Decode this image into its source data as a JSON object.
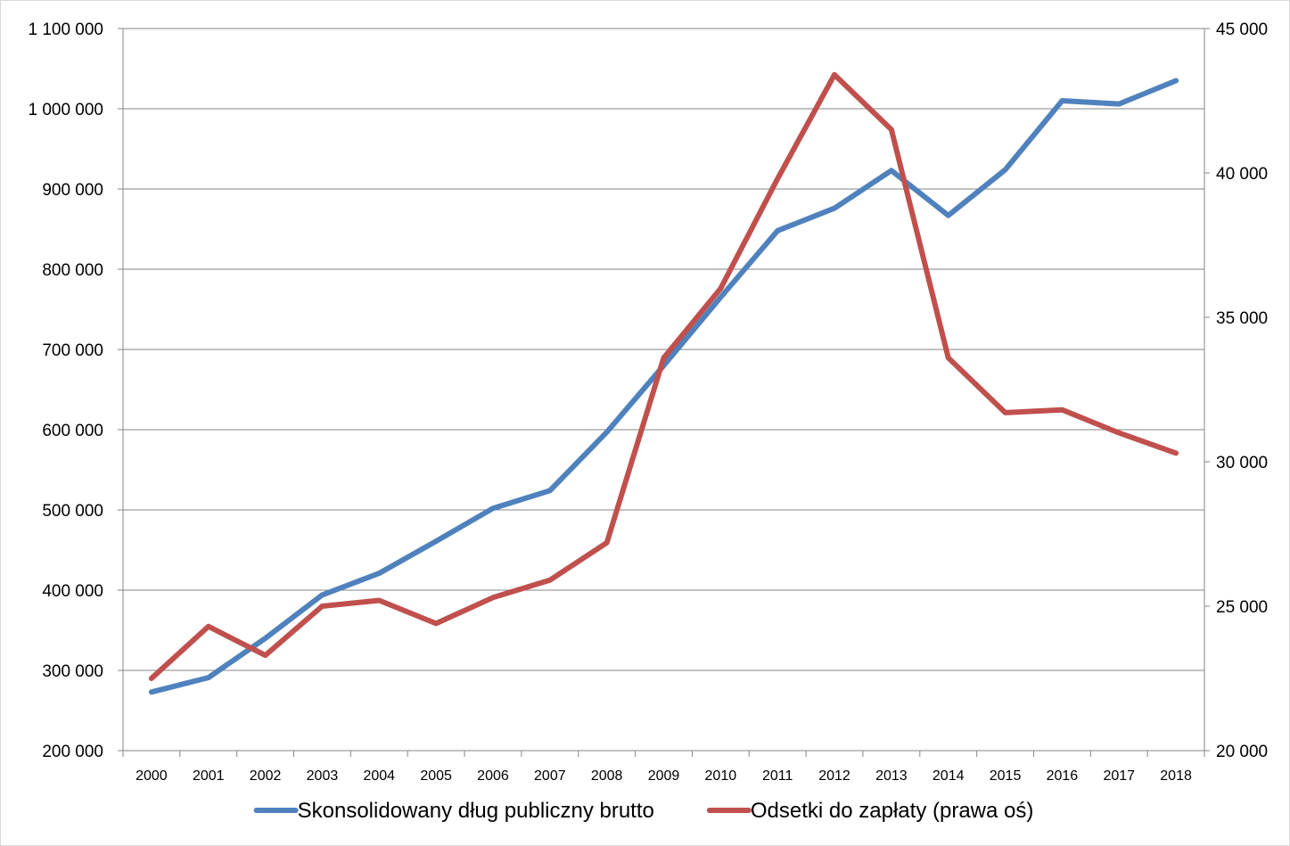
{
  "chart_data": {
    "type": "line",
    "title": "",
    "xlabel": "",
    "ylabel": "",
    "ylabel_right": "",
    "categories": [
      "2000",
      "2001",
      "2002",
      "2003",
      "2004",
      "2005",
      "2006",
      "2007",
      "2008",
      "2009",
      "2010",
      "2011",
      "2012",
      "2013",
      "2014",
      "2015",
      "2016",
      "2017",
      "2018"
    ],
    "ylim": [
      200000,
      1100000
    ],
    "y_ticks": [
      "200 000",
      "300 000",
      "400 000",
      "500 000",
      "600 000",
      "700 000",
      "800 000",
      "900 000",
      "1 000 000",
      "1 100 000"
    ],
    "y2lim": [
      20000,
      45000
    ],
    "y2_ticks": [
      "20 000",
      "25 000",
      "30 000",
      "35 000",
      "40 000",
      "45 000"
    ],
    "grid": true,
    "legend_position": "bottom",
    "series": [
      {
        "name": "Skonsolidowany dług publiczny brutto",
        "axis": "left",
        "color": "#4f81bd",
        "values": [
          273000,
          291000,
          340000,
          394000,
          421000,
          461000,
          502000,
          524000,
          597000,
          680000,
          765000,
          848000,
          876000,
          923000,
          867000,
          924000,
          1010000,
          1006000,
          1035000
        ]
      },
      {
        "name": "Odsetki do zapłaty (prawa oś)",
        "axis": "right",
        "color": "#c0504d",
        "values": [
          22500,
          24300,
          23300,
          25000,
          25200,
          24400,
          25300,
          25900,
          27200,
          33600,
          36000,
          39800,
          43400,
          41500,
          33600,
          31700,
          31800,
          31000,
          30300
        ]
      }
    ]
  }
}
